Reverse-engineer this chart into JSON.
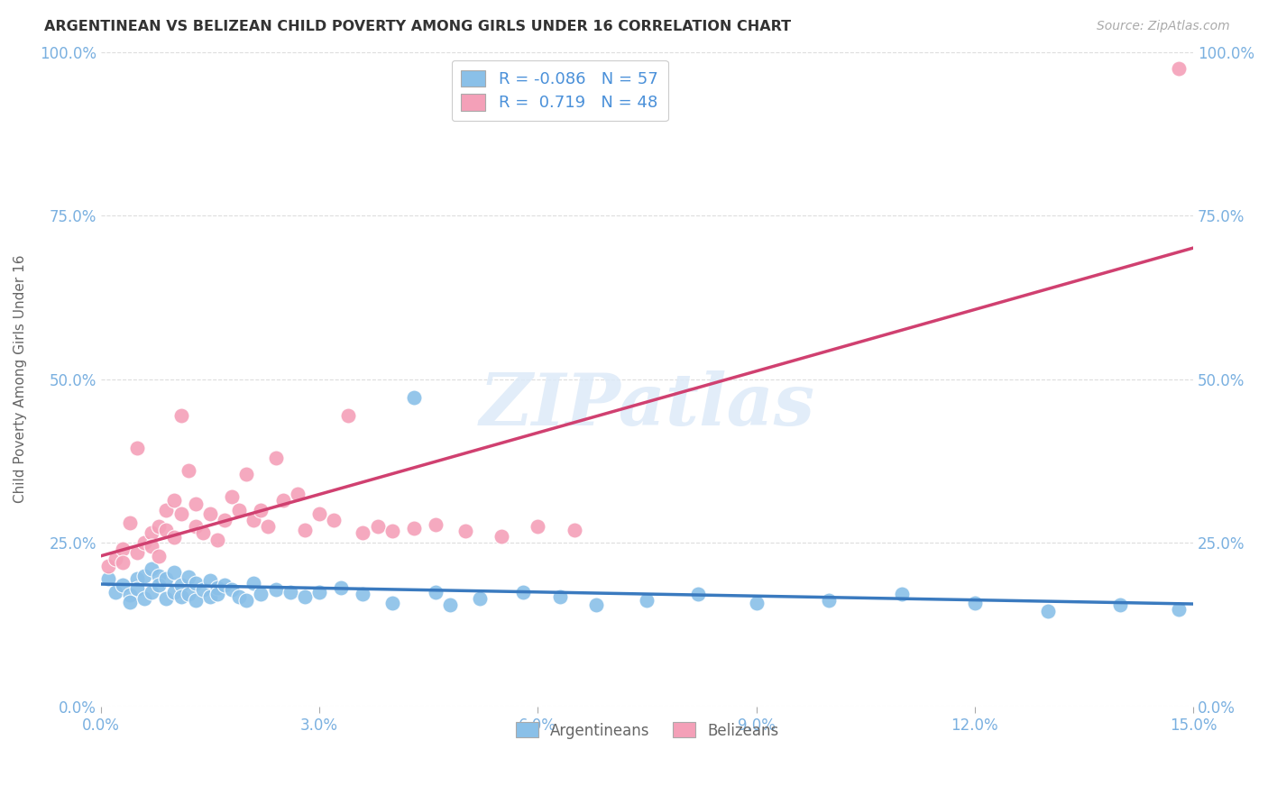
{
  "title": "ARGENTINEAN VS BELIZEAN CHILD POVERTY AMONG GIRLS UNDER 16 CORRELATION CHART",
  "source": "Source: ZipAtlas.com",
  "ylabel": "Child Poverty Among Girls Under 16",
  "xlim": [
    0.0,
    0.15
  ],
  "ylim": [
    0.0,
    1.0
  ],
  "xticks": [
    0.0,
    0.03,
    0.06,
    0.09,
    0.12,
    0.15
  ],
  "xticklabels": [
    "0.0%",
    "3.0%",
    "6.0%",
    "9.0%",
    "12.0%",
    "15.0%"
  ],
  "yticks": [
    0.0,
    0.25,
    0.5,
    0.75,
    1.0
  ],
  "yticklabels": [
    "0.0%",
    "25.0%",
    "50.0%",
    "75.0%",
    "100.0%"
  ],
  "argentina_color": "#8ac0e8",
  "belize_color": "#f4a0b8",
  "argentina_line_color": "#3a7abf",
  "belize_line_color": "#d04070",
  "argentina_R": -0.086,
  "argentina_N": 57,
  "belize_R": 0.719,
  "belize_N": 48,
  "watermark_text": "ZIPatlas",
  "background_color": "#ffffff",
  "grid_color": "#dddddd",
  "tick_label_color": "#7ab0e0",
  "argentina_x": [
    0.001,
    0.002,
    0.003,
    0.004,
    0.004,
    0.005,
    0.005,
    0.006,
    0.006,
    0.007,
    0.007,
    0.008,
    0.008,
    0.009,
    0.009,
    0.01,
    0.01,
    0.011,
    0.011,
    0.012,
    0.012,
    0.013,
    0.013,
    0.014,
    0.015,
    0.015,
    0.016,
    0.016,
    0.017,
    0.018,
    0.019,
    0.02,
    0.021,
    0.022,
    0.024,
    0.026,
    0.028,
    0.03,
    0.033,
    0.036,
    0.04,
    0.043,
    0.046,
    0.048,
    0.052,
    0.058,
    0.063,
    0.068,
    0.075,
    0.082,
    0.09,
    0.1,
    0.11,
    0.12,
    0.13,
    0.14,
    0.148
  ],
  "argentina_y": [
    0.195,
    0.175,
    0.185,
    0.17,
    0.16,
    0.195,
    0.18,
    0.2,
    0.165,
    0.21,
    0.175,
    0.2,
    0.185,
    0.195,
    0.165,
    0.205,
    0.175,
    0.185,
    0.168,
    0.198,
    0.172,
    0.188,
    0.162,
    0.178,
    0.192,
    0.168,
    0.182,
    0.172,
    0.185,
    0.178,
    0.168,
    0.162,
    0.188,
    0.172,
    0.178,
    0.175,
    0.168,
    0.175,
    0.182,
    0.172,
    0.158,
    0.472,
    0.175,
    0.155,
    0.165,
    0.175,
    0.168,
    0.155,
    0.162,
    0.172,
    0.158,
    0.162,
    0.172,
    0.158,
    0.145,
    0.155,
    0.148
  ],
  "belize_x": [
    0.001,
    0.002,
    0.003,
    0.003,
    0.004,
    0.005,
    0.005,
    0.006,
    0.007,
    0.007,
    0.008,
    0.008,
    0.009,
    0.009,
    0.01,
    0.01,
    0.011,
    0.011,
    0.012,
    0.013,
    0.013,
    0.014,
    0.015,
    0.016,
    0.017,
    0.018,
    0.019,
    0.02,
    0.021,
    0.022,
    0.023,
    0.024,
    0.025,
    0.027,
    0.028,
    0.03,
    0.032,
    0.034,
    0.036,
    0.038,
    0.04,
    0.043,
    0.046,
    0.05,
    0.055,
    0.06,
    0.065,
    0.148
  ],
  "belize_y": [
    0.215,
    0.225,
    0.24,
    0.22,
    0.28,
    0.235,
    0.395,
    0.25,
    0.265,
    0.245,
    0.275,
    0.23,
    0.27,
    0.3,
    0.315,
    0.258,
    0.445,
    0.295,
    0.36,
    0.31,
    0.275,
    0.265,
    0.295,
    0.255,
    0.285,
    0.32,
    0.3,
    0.355,
    0.285,
    0.3,
    0.275,
    0.38,
    0.315,
    0.325,
    0.27,
    0.295,
    0.285,
    0.445,
    0.265,
    0.275,
    0.268,
    0.272,
    0.278,
    0.268,
    0.26,
    0.275,
    0.27,
    0.975
  ]
}
